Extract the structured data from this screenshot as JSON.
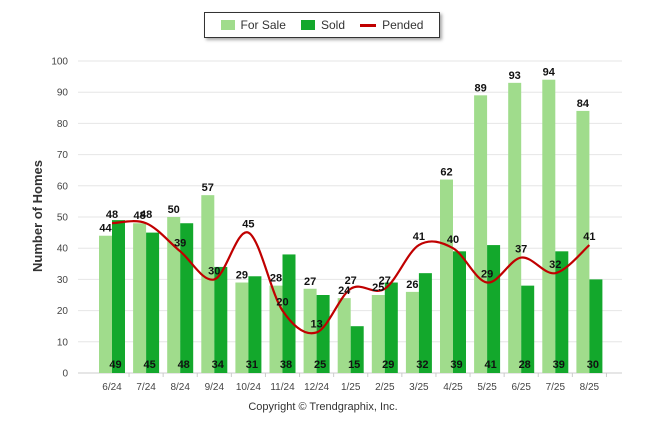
{
  "legend": {
    "for_sale": "For Sale",
    "sold": "Sold",
    "pended": "Pended"
  },
  "credit": "Copyright © Trendgraphix, Inc.",
  "colors": {
    "for_sale": "#a0dc8c",
    "sold": "#13a82c",
    "pended": "#c00000",
    "grid": "#e6e6e6"
  },
  "chart_data": {
    "type": "bar",
    "ylabel": "Number of Homes",
    "xlabel": "",
    "ylim": [
      0,
      100
    ],
    "yticks": [
      0,
      10,
      20,
      30,
      40,
      50,
      60,
      70,
      80,
      90,
      100
    ],
    "grid": true,
    "legend_position": "top-center",
    "categories": [
      "6/24",
      "7/24",
      "8/24",
      "9/24",
      "10/24",
      "11/24",
      "12/24",
      "1/25",
      "2/25",
      "3/25",
      "4/25",
      "5/25",
      "6/25",
      "7/25",
      "8/25"
    ],
    "series": [
      {
        "name": "For Sale",
        "type": "bar",
        "values": [
          44,
          48,
          50,
          57,
          29,
          28,
          27,
          24,
          25,
          26,
          62,
          89,
          93,
          94,
          84
        ]
      },
      {
        "name": "Sold",
        "type": "bar",
        "values": [
          49,
          45,
          48,
          34,
          31,
          38,
          25,
          15,
          29,
          32,
          39,
          41,
          28,
          39,
          30
        ]
      },
      {
        "name": "Pended",
        "type": "line",
        "values": [
          48,
          48,
          39,
          30,
          45,
          20,
          13,
          27,
          27,
          41,
          40,
          29,
          37,
          32,
          41
        ]
      }
    ]
  }
}
